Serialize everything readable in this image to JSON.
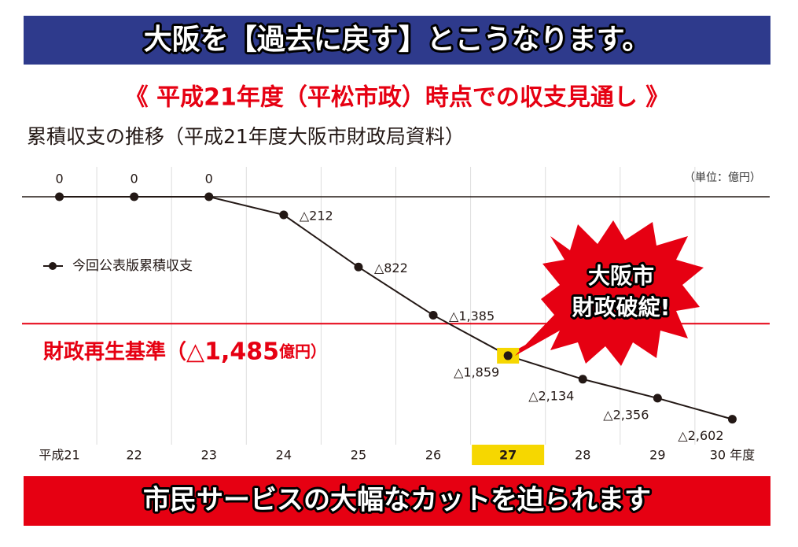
{
  "header": {
    "banner": "大阪を【過去に戻す】とこうなります。",
    "title": "《 平成21年度（平松市政）時点での収支見通し 》",
    "subtitle": "累積収支の推移（平成21年度大阪市財政局資料）"
  },
  "chart_data": {
    "type": "line",
    "unit": "（単位：億円）",
    "categories": [
      "平成21",
      "22",
      "23",
      "24",
      "25",
      "26",
      "27",
      "28",
      "29",
      "30 年度"
    ],
    "series": [
      {
        "name": "今回公表版累積収支",
        "color": "#231815",
        "values": [
          0,
          0,
          0,
          -212,
          -822,
          -1385,
          -1859,
          -2134,
          -2356,
          -2602
        ],
        "value_labels": [
          "0",
          "0",
          "0",
          "△212",
          "△822",
          "△1,385",
          "△1,859",
          "△2,134",
          "△2,356",
          "△2,602"
        ]
      }
    ],
    "ylim": [
      -2900,
      350
    ],
    "threshold": {
      "value": -1485,
      "prefix": "財政再生基準（",
      "label": "△1,485",
      "suffix": "億円）",
      "color": "#e60012"
    },
    "highlight_index": 6,
    "highlight_color": "#f6d700",
    "callout": [
      "大阪市",
      "財政破綻!"
    ]
  },
  "footer": {
    "banner": "市民サービスの大幅なカットを迫られます"
  }
}
